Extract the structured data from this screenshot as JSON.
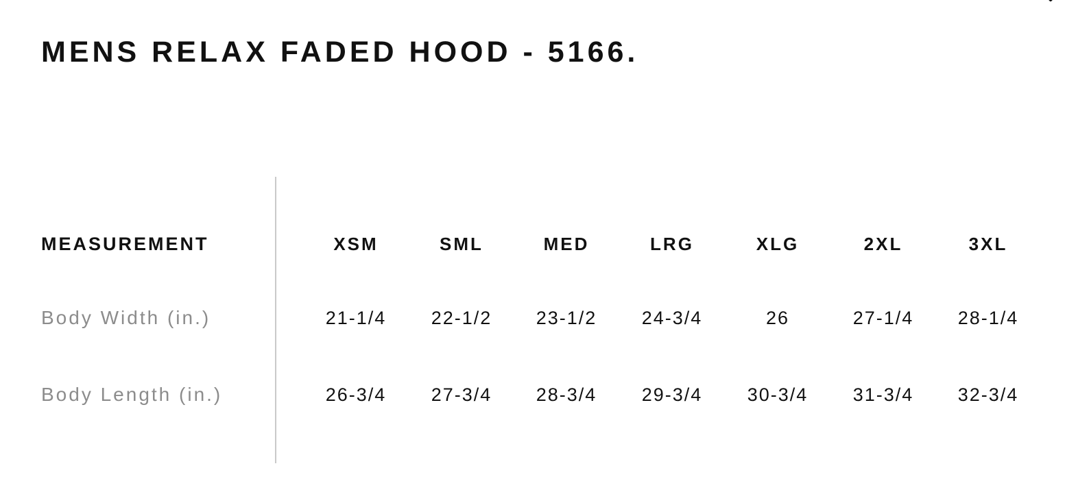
{
  "title": "MENS RELAX FADED HOOD - 5166.",
  "close_icon": "close-icon",
  "table": {
    "header": {
      "label": "MEASUREMENT",
      "sizes": [
        "XSM",
        "SML",
        "MED",
        "LRG",
        "XLG",
        "2XL",
        "3XL"
      ]
    },
    "rows": [
      {
        "label": "Body Width (in.)",
        "values": [
          "21-1/4",
          "22-1/2",
          "23-1/2",
          "24-3/4",
          "26",
          "27-1/4",
          "28-1/4"
        ]
      },
      {
        "label": "Body Length (in.)",
        "values": [
          "26-3/4",
          "27-3/4",
          "28-3/4",
          "29-3/4",
          "30-3/4",
          "31-3/4",
          "32-3/4"
        ]
      }
    ]
  },
  "colors": {
    "text": "#111111",
    "muted": "#8c8c8c",
    "divider": "#c9c9c9",
    "background": "#ffffff"
  }
}
